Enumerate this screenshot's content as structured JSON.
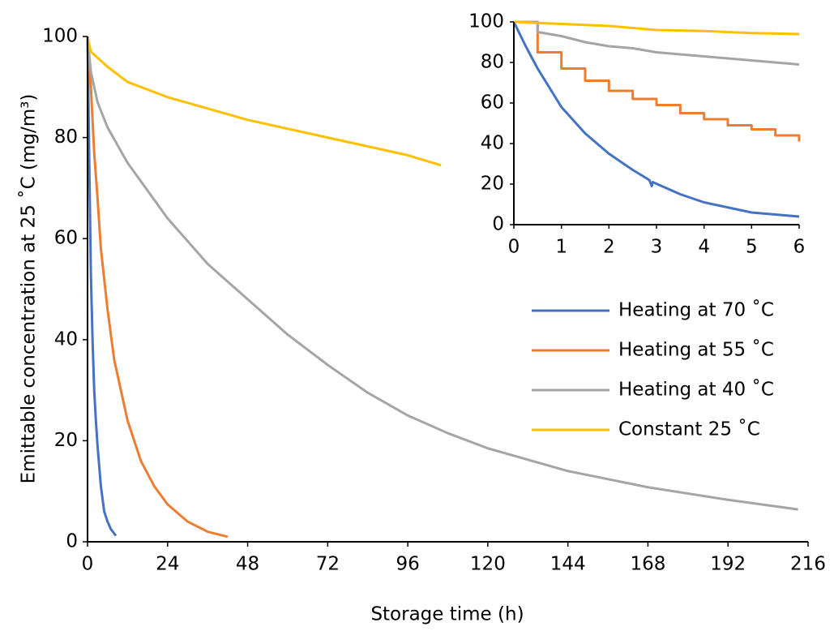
{
  "chart_data": [
    {
      "type": "line",
      "x_label": "Storage time (h)",
      "y_label": "Emittable concentration at 25 ˚C (mg/m³)",
      "xlim": [
        0,
        216
      ],
      "ylim": [
        0,
        100
      ],
      "xticks": [
        0,
        24,
        48,
        72,
        96,
        120,
        144,
        168,
        192,
        216
      ],
      "yticks": [
        0,
        20,
        40,
        60,
        80,
        100
      ],
      "legend": "right",
      "series": [
        {
          "name": "Heating at 70 ˚C",
          "color": "#4472c4",
          "x": [
            0,
            0.5,
            1,
            1.5,
            2,
            2.5,
            3,
            4,
            5,
            6,
            7,
            8.5
          ],
          "values": [
            100,
            76,
            53,
            40,
            30,
            24,
            19,
            11,
            6,
            4,
            2.5,
            1.2
          ]
        },
        {
          "name": "Heating at 55 ˚C",
          "color": "#ed7d31",
          "x": [
            0,
            1,
            2,
            3,
            4,
            6,
            8,
            12,
            16,
            20,
            24,
            30,
            36,
            42
          ],
          "values": [
            100,
            90,
            77,
            68,
            58,
            46,
            36,
            24,
            16,
            11,
            7.4,
            4,
            2,
            1
          ]
        },
        {
          "name": "Heating at 40 ˚C",
          "color": "#a5a5a5",
          "x": [
            0,
            1,
            3,
            6,
            12,
            24,
            36,
            48,
            60,
            72,
            84,
            96,
            108,
            120,
            144,
            168,
            192,
            213
          ],
          "values": [
            100,
            93,
            87,
            82,
            75,
            64,
            55,
            48,
            41,
            35,
            29.5,
            25,
            21.5,
            18.5,
            14,
            10.8,
            8.3,
            6.4
          ]
        },
        {
          "name": "Constant 25 ˚C",
          "color": "#ffc000",
          "x": [
            0,
            1,
            6,
            12,
            24,
            48,
            72,
            96,
            106
          ],
          "values": [
            100,
            97,
            94,
            91,
            88,
            83.5,
            80,
            76.5,
            74.5
          ]
        }
      ]
    },
    {
      "type": "line",
      "xlim": [
        0,
        6
      ],
      "ylim": [
        0,
        100
      ],
      "xticks": [
        0,
        1,
        2,
        3,
        4,
        5,
        6
      ],
      "yticks": [
        0,
        20,
        40,
        60,
        80,
        100
      ],
      "series": [
        {
          "color": "#4472c4",
          "x": [
            0,
            0.25,
            0.5,
            1,
            1.5,
            2,
            2.5,
            2.85,
            2.9,
            2.92,
            3.5,
            4,
            5,
            6
          ],
          "values": [
            100,
            88,
            77,
            58,
            45,
            35,
            27,
            22,
            19,
            21,
            15,
            11,
            6,
            4
          ]
        },
        {
          "color": "#ed7d31",
          "x": [
            0,
            0.5,
            0.5,
            1,
            1,
            1.5,
            1.5,
            2,
            2,
            2.5,
            2.5,
            3,
            3,
            3.5,
            3.5,
            4,
            4,
            4.5,
            4.5,
            5,
            5,
            5.5,
            5.5,
            6,
            6
          ],
          "values": [
            100,
            100,
            85,
            85,
            77,
            77,
            71,
            71,
            66,
            66,
            62,
            62,
            59,
            59,
            55,
            55,
            52,
            52,
            49,
            49,
            47,
            47,
            44,
            44,
            41
          ]
        },
        {
          "color": "#a5a5a5",
          "x": [
            0,
            0.5,
            0.5,
            1,
            1.5,
            2,
            2.5,
            3,
            3.5,
            4,
            4.5,
            5,
            5.5,
            6
          ],
          "values": [
            100,
            100,
            95,
            93,
            90,
            88,
            87,
            85,
            84,
            83,
            82,
            81,
            80,
            79
          ]
        },
        {
          "color": "#ffc000",
          "x": [
            0,
            0.5,
            1,
            2,
            2.5,
            3,
            4,
            5,
            6
          ],
          "values": [
            100,
            99.5,
            99,
            98,
            97,
            96,
            95.5,
            94.5,
            94
          ]
        }
      ]
    }
  ]
}
